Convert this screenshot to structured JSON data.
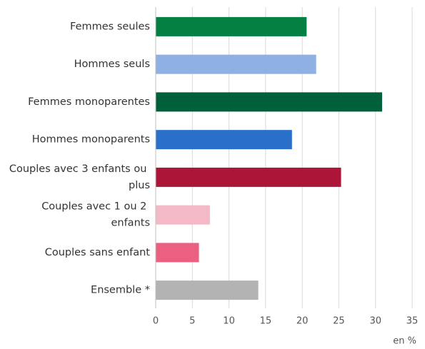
{
  "chart_data": {
    "type": "barh",
    "categories": [
      "Femmes seules",
      "Hommes seuls",
      "Femmes monoparentes",
      "Hommes monoparents",
      "Couples avec 3 enfants ou plus",
      "Couples avec 1 ou 2 enfants",
      "Couples sans enfant",
      "Ensemble *"
    ],
    "values": [
      20.6,
      21.9,
      30.9,
      18.6,
      25.3,
      7.4,
      5.9,
      14.0
    ],
    "colors": [
      "#048043",
      "#8eb0e2",
      "#00603a",
      "#2a6fca",
      "#ac1538",
      "#f4b9c7",
      "#eb6080",
      "#b3b3b3"
    ],
    "xlim": [
      0,
      35
    ],
    "xticks": [
      0,
      5,
      10,
      15,
      20,
      25,
      30,
      35
    ],
    "xlabel": "en %",
    "grid": true
  }
}
